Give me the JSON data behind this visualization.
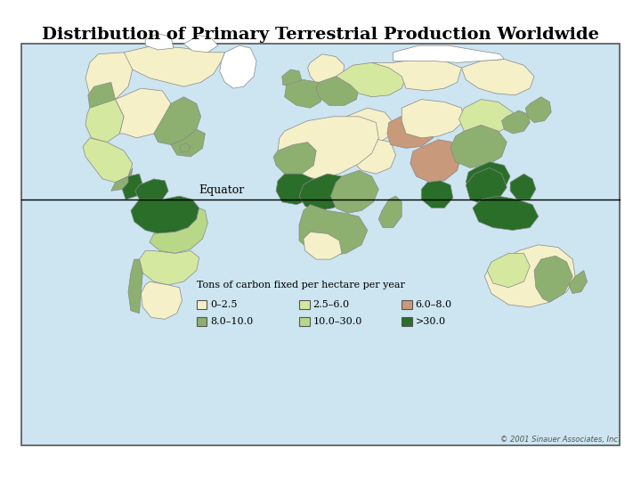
{
  "title": "Distribution of Primary Terrestrial Production Worldwide",
  "title_fontsize": 14,
  "title_fontweight": "bold",
  "background_color": "#cce5f0",
  "figure_bg": "#ffffff",
  "map_bg": "#cce5f0",
  "equator_label": "Equator",
  "legend_title": "Tons of carbon fixed per hectare per year",
  "legend_items": [
    {
      "label": "0–2.5",
      "color": "#f5f0c8"
    },
    {
      "label": "2.5–6.0",
      "color": "#d4e8a0"
    },
    {
      "label": "6.0–8.0",
      "color": "#c8997a"
    },
    {
      "label": "8.0–10.0",
      "color": "#8db070"
    },
    {
      "label": "10.0–30.0",
      "color": "#b8d888"
    },
    {
      "label": ">30.0",
      "color": "#2a6e2a"
    }
  ],
  "copyright": "© 2001 Sinauer Associates, Inc.",
  "border_color": "#888888",
  "outline_color": "#888888"
}
